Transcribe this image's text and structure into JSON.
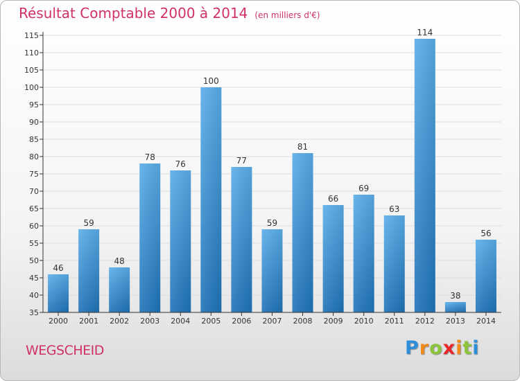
{
  "title": "Résultat Comptable 2000 à 2014",
  "subtitle": "(en milliers d'€)",
  "commune": "WEGSCHEID",
  "logo": {
    "letters": [
      "P",
      "r",
      "o",
      "x",
      "i",
      "t",
      "i"
    ],
    "colors": [
      "#2d8fd9",
      "#f08a1c",
      "#8cc43c",
      "#e8262a",
      "#f08a1c",
      "#8cc43c",
      "#2d8fd9"
    ]
  },
  "colors": {
    "bar_top": "#5aaeea",
    "bar_bottom": "#1f73b8",
    "axis": "#333333",
    "grid": "#dddddd",
    "title": "#d0306a"
  },
  "chart_data": {
    "type": "bar",
    "categories": [
      "2000",
      "2001",
      "2002",
      "2003",
      "2004",
      "2005",
      "2006",
      "2007",
      "2008",
      "2009",
      "2010",
      "2011",
      "2012",
      "2013",
      "2014"
    ],
    "values": [
      46,
      59,
      48,
      78,
      76,
      100,
      77,
      59,
      81,
      66,
      69,
      63,
      114,
      38,
      56
    ],
    "ylim": [
      35,
      115
    ],
    "yticks": [
      35,
      40,
      45,
      50,
      55,
      60,
      65,
      70,
      75,
      80,
      85,
      90,
      95,
      100,
      105,
      110,
      115
    ],
    "grid": true
  }
}
